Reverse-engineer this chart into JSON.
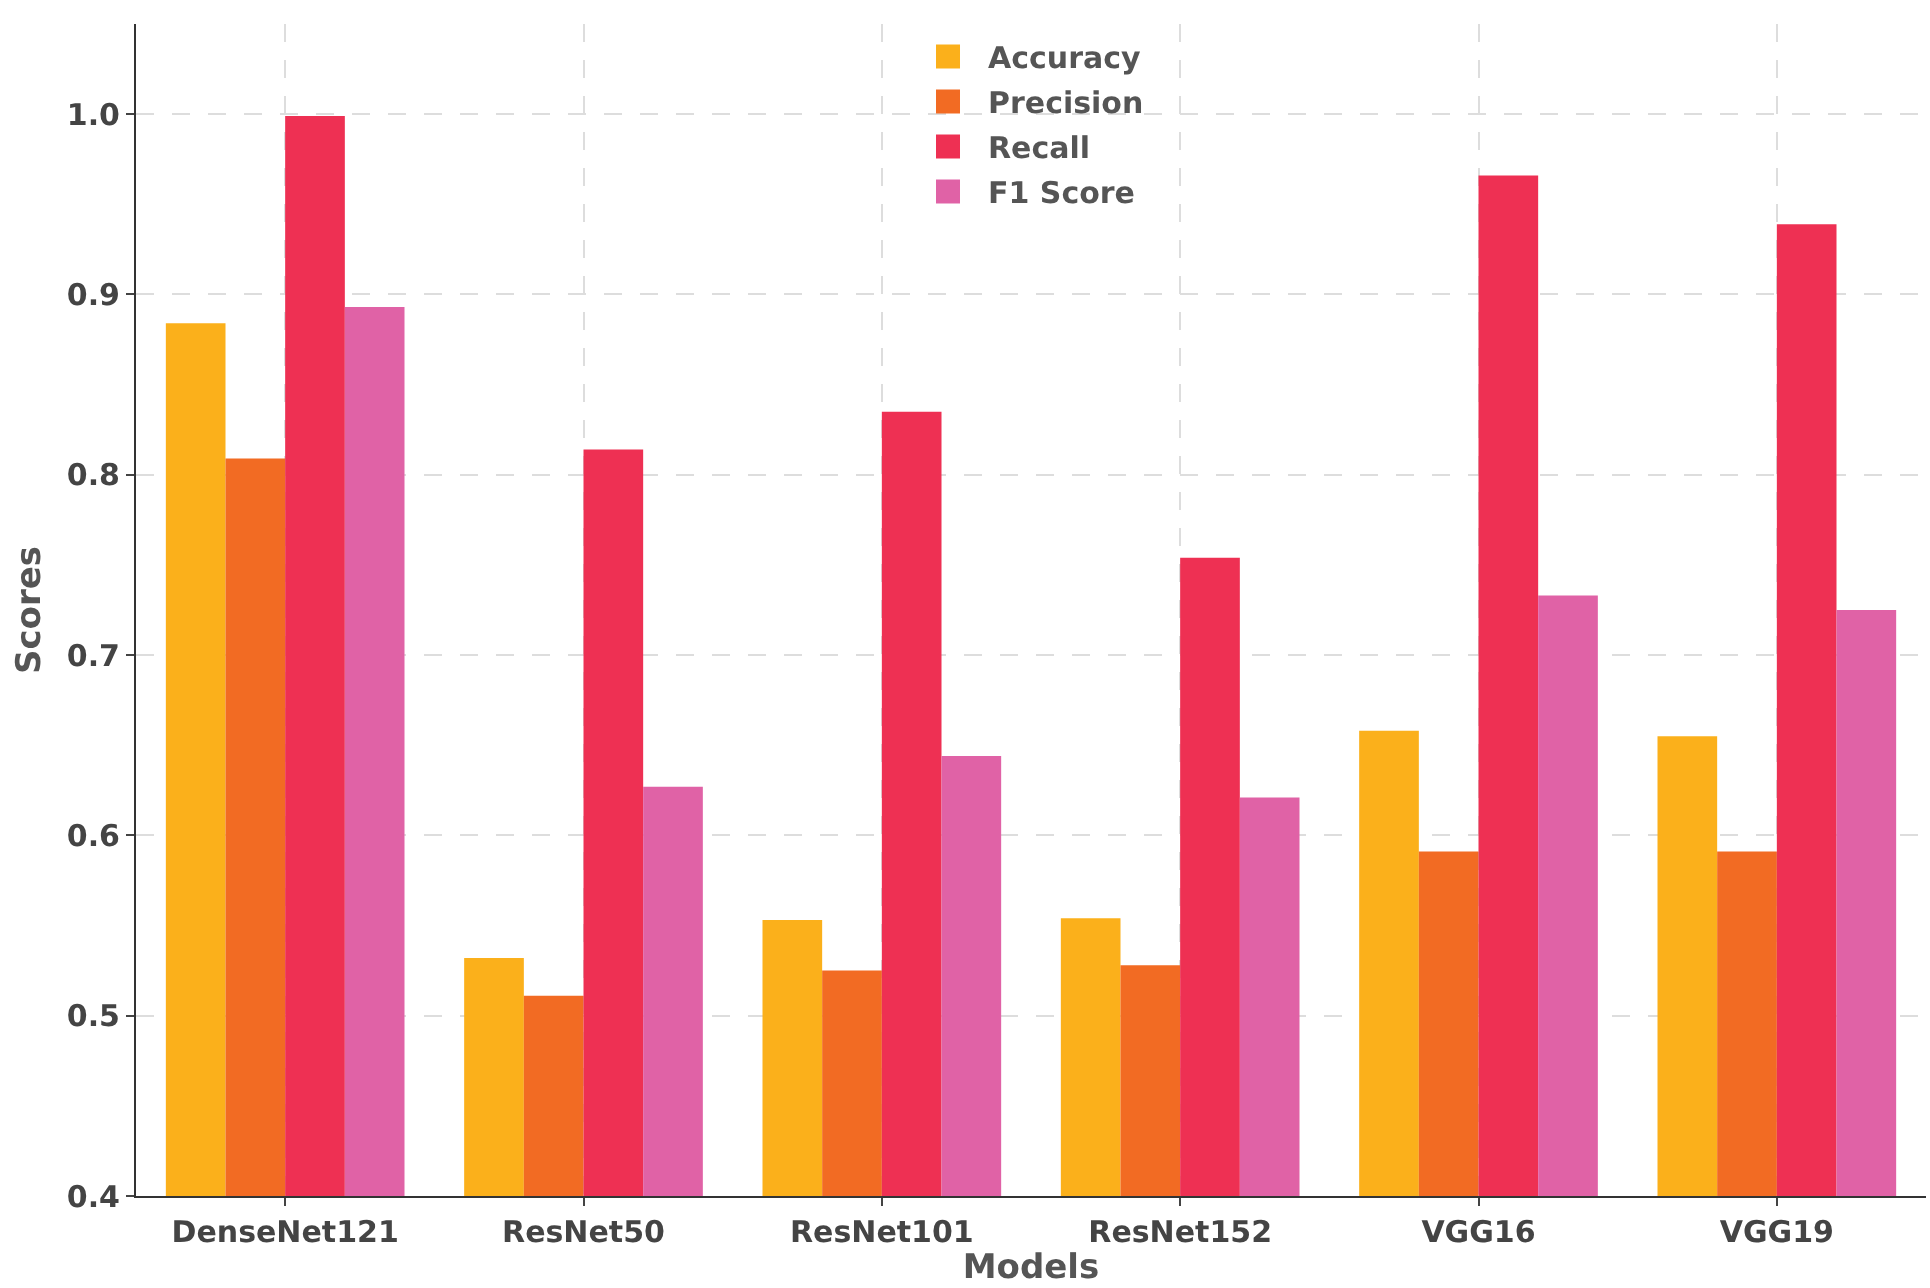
{
  "chart_data": {
    "type": "bar",
    "xlabel": "Models",
    "ylabel": "Scores",
    "categories": [
      "DenseNet121",
      "ResNet50",
      "ResNet101",
      "ResNet152",
      "VGG16",
      "VGG19"
    ],
    "series": [
      {
        "name": "Accuracy",
        "color": "#fbb01b",
        "values": [
          0.884,
          0.532,
          0.553,
          0.554,
          0.658,
          0.655
        ]
      },
      {
        "name": "Precision",
        "color": "#f26b23",
        "values": [
          0.809,
          0.511,
          0.525,
          0.528,
          0.591,
          0.591
        ]
      },
      {
        "name": "Recall",
        "color": "#ee3053",
        "values": [
          0.999,
          0.814,
          0.835,
          0.754,
          0.966,
          0.939
        ]
      },
      {
        "name": "F1 Score",
        "color": "#e062a6",
        "values": [
          0.893,
          0.627,
          0.644,
          0.621,
          0.733,
          0.725
        ]
      }
    ],
    "ylim": [
      0.4,
      1.05
    ],
    "yticks": [
      0.4,
      0.5,
      0.6,
      0.7,
      0.8,
      0.9,
      {
        "value": 1,
        "label": "1.0"
      }
    ],
    "grid": true,
    "legend": "top center"
  }
}
